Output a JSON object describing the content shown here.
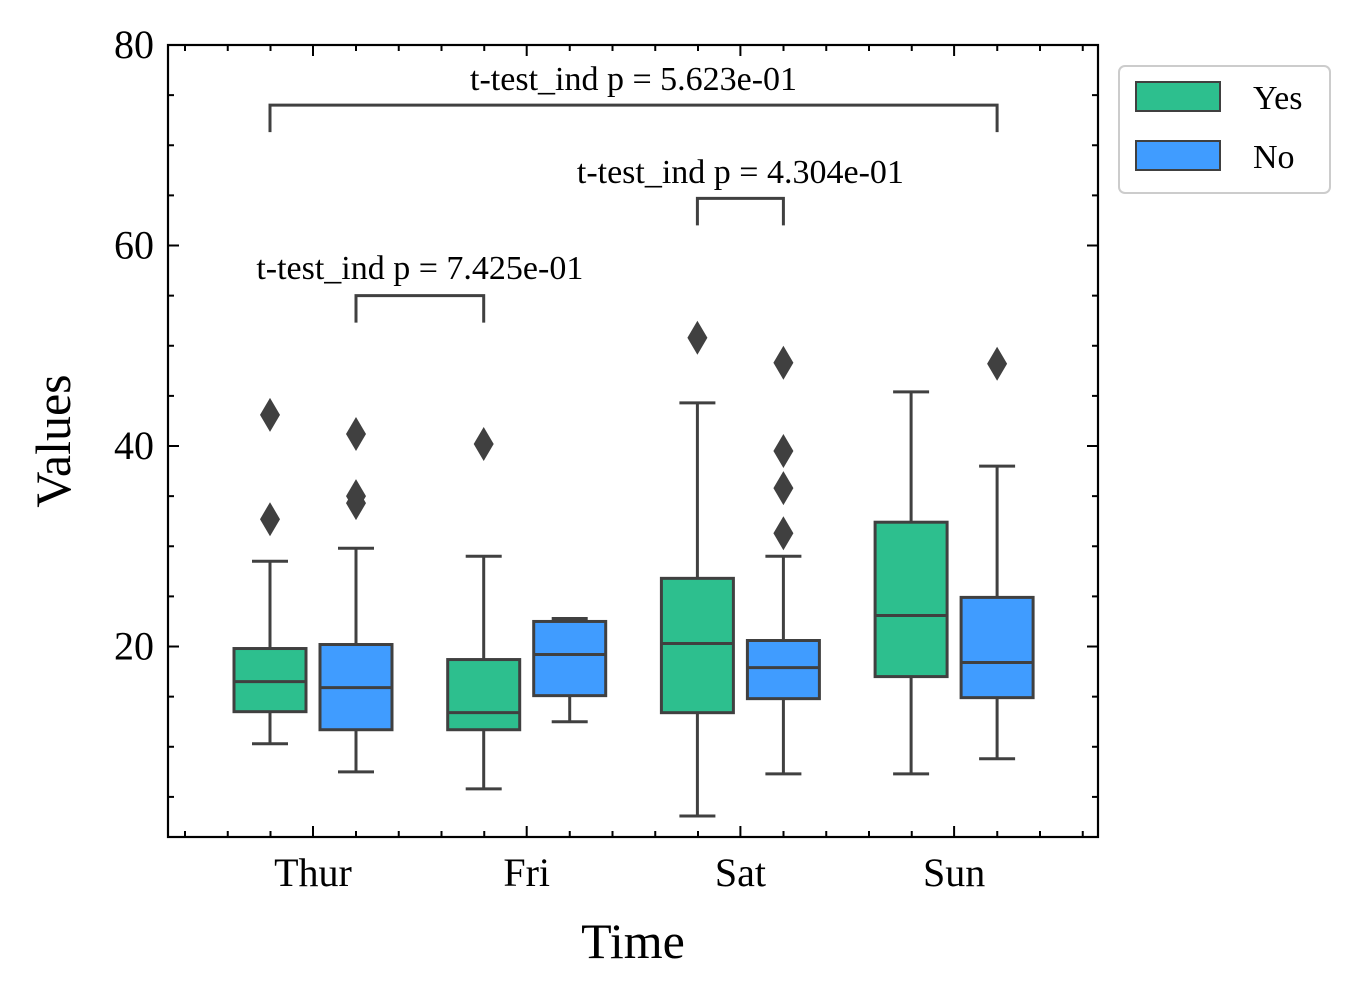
{
  "chart_data": {
    "type": "box",
    "xlabel": "Time",
    "ylabel": "Values",
    "categories": [
      "Thur",
      "Fri",
      "Sat",
      "Sun"
    ],
    "ylim": [
      1,
      80
    ],
    "yticks": [
      20,
      40,
      60,
      80
    ],
    "legend": {
      "placement": "outside-top-right"
    },
    "series": [
      {
        "name": "Yes",
        "color": "#2dbf8e",
        "boxes": [
          {
            "whislo": 10.3,
            "q1": 13.5,
            "med": 16.5,
            "q3": 19.8,
            "whishi": 28.5,
            "fliers": [
              32.7,
              43.1
            ]
          },
          {
            "whislo": 5.8,
            "q1": 11.7,
            "med": 13.4,
            "q3": 18.7,
            "whishi": 29.0,
            "fliers": [
              40.2
            ]
          },
          {
            "whislo": 3.1,
            "q1": 13.4,
            "med": 20.3,
            "q3": 26.8,
            "whishi": 44.3,
            "fliers": [
              50.8
            ]
          },
          {
            "whislo": 7.3,
            "q1": 17.0,
            "med": 23.1,
            "q3": 32.4,
            "whishi": 45.4,
            "fliers": []
          }
        ]
      },
      {
        "name": "No",
        "color": "#409cff",
        "boxes": [
          {
            "whislo": 7.5,
            "q1": 11.7,
            "med": 15.9,
            "q3": 20.2,
            "whishi": 29.8,
            "fliers": [
              34.3,
              35.0,
              41.2
            ]
          },
          {
            "whislo": 12.5,
            "q1": 15.1,
            "med": 19.2,
            "q3": 22.5,
            "whishi": 22.8,
            "fliers": []
          },
          {
            "whislo": 7.3,
            "q1": 14.8,
            "med": 17.9,
            "q3": 20.6,
            "whishi": 29.0,
            "fliers": [
              31.3,
              35.8,
              39.5,
              48.3
            ]
          },
          {
            "whislo": 8.8,
            "q1": 14.9,
            "med": 18.4,
            "q3": 24.9,
            "whishi": 38.0,
            "fliers": [
              48.2
            ]
          }
        ]
      }
    ],
    "annotations": [
      {
        "label": "t-test_ind p = 7.425e-01",
        "from": [
          0,
          1
        ],
        "to": [
          1,
          0
        ]
      },
      {
        "label": "t-test_ind p = 4.304e-01",
        "from": [
          2,
          0
        ],
        "to": [
          2,
          1
        ]
      },
      {
        "label": "t-test_ind p = 5.623e-01",
        "from": [
          0,
          0
        ],
        "to": [
          3,
          1
        ]
      }
    ]
  }
}
